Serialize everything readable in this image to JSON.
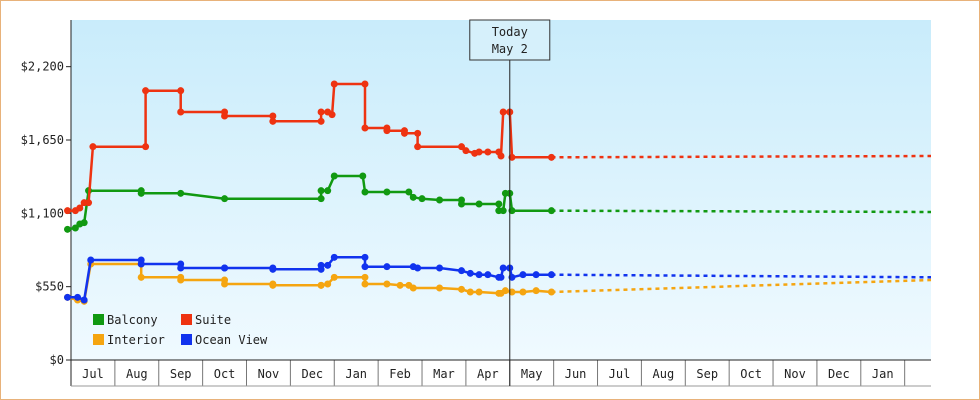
{
  "chart_data": {
    "type": "line",
    "title": "",
    "xlabel": "",
    "ylabel": "",
    "ylim": [
      0,
      2550
    ],
    "y_ticks": [
      0,
      550,
      1100,
      1650,
      2200
    ],
    "y_tick_labels": [
      "$0",
      "$550",
      "$1,100",
      "$1,650",
      "$2,200"
    ],
    "x_range": [
      0,
      19.6
    ],
    "x_ticks": [
      {
        "x": 0.5,
        "label": "Jul"
      },
      {
        "x": 1.5,
        "label": "Aug"
      },
      {
        "x": 2.5,
        "label": "Sep"
      },
      {
        "x": 3.5,
        "label": "Oct"
      },
      {
        "x": 4.5,
        "label": "Nov"
      },
      {
        "x": 5.5,
        "label": "Dec"
      },
      {
        "x": 6.5,
        "label": "Jan"
      },
      {
        "x": 7.5,
        "label": "Feb"
      },
      {
        "x": 8.5,
        "label": "Mar"
      },
      {
        "x": 9.5,
        "label": "Apr"
      },
      {
        "x": 10.5,
        "label": "May"
      },
      {
        "x": 11.5,
        "label": "Jun"
      },
      {
        "x": 12.5,
        "label": "Jul"
      },
      {
        "x": 13.5,
        "label": "Aug"
      },
      {
        "x": 14.5,
        "label": "Sep"
      },
      {
        "x": 15.5,
        "label": "Oct"
      },
      {
        "x": 16.5,
        "label": "Nov"
      },
      {
        "x": 17.5,
        "label": "Dec"
      },
      {
        "x": 18.5,
        "label": "Jan"
      }
    ],
    "grid": true,
    "legend_position": "bottom-left",
    "today": {
      "x": 10,
      "line1": "Today",
      "line2": "May 2"
    },
    "series": [
      {
        "name": "Balcony",
        "color": "#119911",
        "points": [
          [
            -0.08,
            980
          ],
          [
            0.1,
            990
          ],
          [
            0.2,
            1020
          ],
          [
            0.3,
            1030
          ],
          [
            0.4,
            1270
          ],
          [
            1.6,
            1270
          ],
          [
            1.6,
            1250
          ],
          [
            2.5,
            1250
          ],
          [
            3.5,
            1210
          ],
          [
            5.7,
            1210
          ],
          [
            5.7,
            1270
          ],
          [
            5.85,
            1270
          ],
          [
            6.0,
            1380
          ],
          [
            6.65,
            1380
          ],
          [
            6.7,
            1260
          ],
          [
            7.2,
            1260
          ],
          [
            7.7,
            1260
          ],
          [
            7.8,
            1220
          ],
          [
            8.0,
            1210
          ],
          [
            8.4,
            1200
          ],
          [
            8.9,
            1200
          ],
          [
            8.9,
            1170
          ],
          [
            9.3,
            1170
          ],
          [
            9.75,
            1170
          ],
          [
            9.75,
            1120
          ],
          [
            9.85,
            1120
          ],
          [
            9.9,
            1250
          ],
          [
            10.0,
            1250
          ],
          [
            10.05,
            1120
          ],
          [
            10.95,
            1120
          ]
        ],
        "forecast": [
          [
            10.95,
            1120
          ],
          [
            19.6,
            1110
          ]
        ]
      },
      {
        "name": "Suite",
        "color": "#ee3311",
        "points": [
          [
            -0.08,
            1120
          ],
          [
            0.1,
            1120
          ],
          [
            0.2,
            1140
          ],
          [
            0.3,
            1180
          ],
          [
            0.4,
            1180
          ],
          [
            0.5,
            1600
          ],
          [
            1.7,
            1600
          ],
          [
            1.7,
            2020
          ],
          [
            2.5,
            2020
          ],
          [
            2.5,
            1860
          ],
          [
            3.5,
            1860
          ],
          [
            3.5,
            1830
          ],
          [
            4.6,
            1830
          ],
          [
            4.6,
            1790
          ],
          [
            5.7,
            1790
          ],
          [
            5.7,
            1860
          ],
          [
            5.85,
            1860
          ],
          [
            5.95,
            1840
          ],
          [
            6.0,
            2070
          ],
          [
            6.7,
            2070
          ],
          [
            6.7,
            1740
          ],
          [
            7.2,
            1740
          ],
          [
            7.2,
            1720
          ],
          [
            7.6,
            1720
          ],
          [
            7.6,
            1700
          ],
          [
            7.9,
            1700
          ],
          [
            7.9,
            1600
          ],
          [
            8.9,
            1600
          ],
          [
            9.0,
            1570
          ],
          [
            9.2,
            1550
          ],
          [
            9.3,
            1560
          ],
          [
            9.5,
            1560
          ],
          [
            9.75,
            1560
          ],
          [
            9.8,
            1530
          ],
          [
            9.85,
            1860
          ],
          [
            10.0,
            1860
          ],
          [
            10.05,
            1520
          ],
          [
            10.95,
            1520
          ]
        ],
        "forecast": [
          [
            10.95,
            1520
          ],
          [
            19.6,
            1530
          ]
        ]
      },
      {
        "name": "Interior",
        "color": "#f5a510",
        "points": [
          [
            -0.08,
            470
          ],
          [
            0.15,
            450
          ],
          [
            0.3,
            440
          ],
          [
            0.45,
            720
          ],
          [
            1.6,
            720
          ],
          [
            1.6,
            620
          ],
          [
            2.5,
            620
          ],
          [
            2.5,
            600
          ],
          [
            3.5,
            600
          ],
          [
            3.5,
            570
          ],
          [
            4.6,
            570
          ],
          [
            4.6,
            560
          ],
          [
            5.7,
            560
          ],
          [
            5.7,
            560
          ],
          [
            5.85,
            570
          ],
          [
            6.0,
            620
          ],
          [
            6.7,
            620
          ],
          [
            6.7,
            570
          ],
          [
            7.2,
            570
          ],
          [
            7.5,
            560
          ],
          [
            7.7,
            560
          ],
          [
            7.8,
            540
          ],
          [
            8.4,
            540
          ],
          [
            8.9,
            530
          ],
          [
            9.1,
            510
          ],
          [
            9.3,
            510
          ],
          [
            9.75,
            500
          ],
          [
            9.8,
            500
          ],
          [
            9.9,
            520
          ],
          [
            10.05,
            510
          ],
          [
            10.3,
            510
          ],
          [
            10.6,
            520
          ],
          [
            10.95,
            510
          ]
        ],
        "forecast": [
          [
            10.95,
            510
          ],
          [
            19.6,
            600
          ]
        ]
      },
      {
        "name": "Ocean View",
        "color": "#1133ee",
        "points": [
          [
            -0.08,
            470
          ],
          [
            0.15,
            470
          ],
          [
            0.3,
            450
          ],
          [
            0.45,
            750
          ],
          [
            1.6,
            750
          ],
          [
            1.6,
            720
          ],
          [
            2.5,
            720
          ],
          [
            2.5,
            690
          ],
          [
            3.5,
            690
          ],
          [
            3.5,
            690
          ],
          [
            4.6,
            690
          ],
          [
            4.6,
            680
          ],
          [
            5.7,
            680
          ],
          [
            5.7,
            710
          ],
          [
            5.85,
            710
          ],
          [
            6.0,
            770
          ],
          [
            6.7,
            770
          ],
          [
            6.7,
            700
          ],
          [
            7.2,
            700
          ],
          [
            7.8,
            700
          ],
          [
            7.9,
            690
          ],
          [
            8.4,
            690
          ],
          [
            8.9,
            670
          ],
          [
            9.1,
            650
          ],
          [
            9.3,
            640
          ],
          [
            9.5,
            640
          ],
          [
            9.75,
            620
          ],
          [
            9.8,
            620
          ],
          [
            9.85,
            690
          ],
          [
            10.0,
            690
          ],
          [
            10.05,
            620
          ],
          [
            10.3,
            640
          ],
          [
            10.6,
            640
          ],
          [
            10.95,
            640
          ]
        ],
        "forecast": [
          [
            10.95,
            640
          ],
          [
            19.6,
            620
          ]
        ]
      }
    ]
  }
}
